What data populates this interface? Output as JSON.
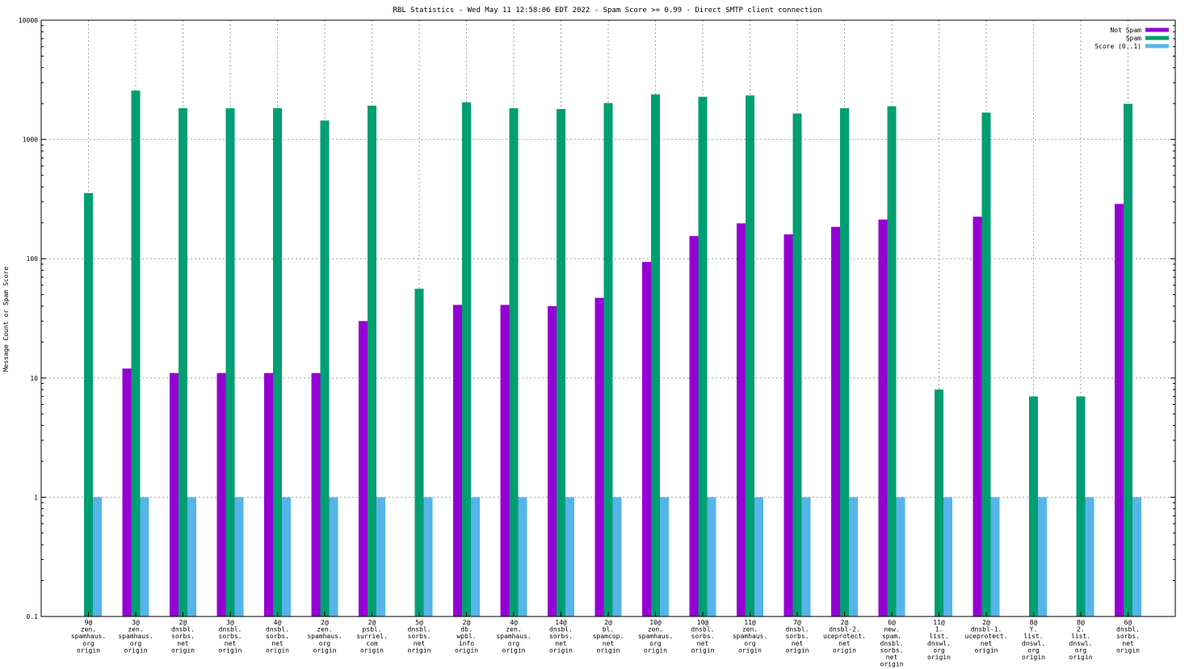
{
  "chart_data": {
    "type": "bar",
    "scale": "log",
    "title": "RBL Statistics - Wed May 11 12:58:06 EDT 2022 - Spam Score >= 0.99 - Direct SMTP client connection",
    "xlabel": "",
    "ylabel": "Message Count or Spam Score",
    "ylim": [
      0.1,
      10000
    ],
    "yticks": [
      "0.1",
      "1",
      "10",
      "100",
      "1000",
      "10000"
    ],
    "grid": true,
    "legend_position": "top-right",
    "categories": [
      [
        "9@",
        "zen.",
        "spamhaus.",
        "org",
        "origin"
      ],
      [
        "3@",
        "zen.",
        "spamhaus.",
        "org",
        "origin"
      ],
      [
        "2@",
        "dnsbl.",
        "sorbs.",
        "net",
        "origin"
      ],
      [
        "3@",
        "dnsbl.",
        "sorbs.",
        "net",
        "origin"
      ],
      [
        "4@",
        "dnsbl.",
        "sorbs.",
        "net",
        "origin"
      ],
      [
        "2@",
        "zen.",
        "spamhaus.",
        "org",
        "origin"
      ],
      [
        "2@",
        "psbl.",
        "surriel.",
        "com",
        "origin"
      ],
      [
        "5@",
        "dnsbl.",
        "sorbs.",
        "net",
        "origin"
      ],
      [
        "2@",
        "db.",
        "wpbl.",
        "info",
        "origin"
      ],
      [
        "4@",
        "zen.",
        "spamhaus.",
        "org",
        "origin"
      ],
      [
        "14@",
        "dnsbl.",
        "sorbs.",
        "net",
        "origin"
      ],
      [
        "2@",
        "bl.",
        "spamcop.",
        "net",
        "origin"
      ],
      [
        "10@",
        "zen.",
        "spamhaus.",
        "org",
        "origin"
      ],
      [
        "10@",
        "dnsbl.",
        "sorbs.",
        "net",
        "origin"
      ],
      [
        "11@",
        "zen.",
        "spamhaus.",
        "org",
        "origin"
      ],
      [
        "7@",
        "dnsbl.",
        "sorbs.",
        "net",
        "origin"
      ],
      [
        "2@",
        "dnsbl-2.",
        "uceprotect.",
        "net",
        "origin"
      ],
      [
        "6@",
        "new.",
        "spam.",
        "dnsbl.",
        "sorbs.",
        "net",
        "origin"
      ],
      [
        "11@",
        "1.",
        "list.",
        "dnswl.",
        "org",
        "origin"
      ],
      [
        "2@",
        "dnsbl-1.",
        "uceprotect.",
        "net",
        "origin"
      ],
      [
        "8@",
        "Y.",
        "list.",
        "dnswl.",
        "org",
        "origin"
      ],
      [
        "8@",
        "2.",
        "list.",
        "dnswl.",
        "org",
        "origin"
      ],
      [
        "6@",
        "dnsbl.",
        "sorbs.",
        "net",
        "origin"
      ]
    ],
    "series": [
      {
        "name": "Not Spam",
        "color": "#9400d3",
        "values": [
          null,
          12,
          11,
          11,
          11,
          11,
          30,
          null,
          41,
          41,
          40,
          47,
          94,
          155,
          198,
          160,
          185,
          213,
          null,
          225,
          null,
          null,
          288
        ]
      },
      {
        "name": "Spam",
        "color": "#009e73",
        "values": [
          355,
          2570,
          1830,
          1830,
          1830,
          1440,
          1920,
          56,
          2050,
          1830,
          1800,
          2020,
          2390,
          2280,
          2340,
          1650,
          1830,
          1900,
          8,
          1680,
          7,
          7,
          1990
        ]
      },
      {
        "name": "Score (0..1)",
        "color": "#56b4e9",
        "values": [
          1,
          1,
          1,
          1,
          1,
          1,
          1,
          1,
          1,
          1,
          1,
          1,
          1,
          1,
          1,
          1,
          1,
          1,
          1,
          1,
          1,
          1,
          1
        ]
      }
    ]
  }
}
